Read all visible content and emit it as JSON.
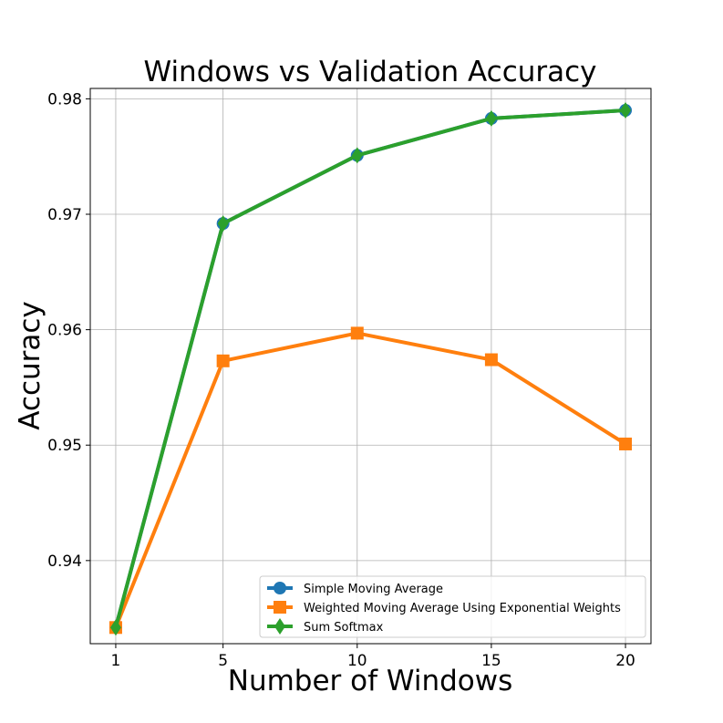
{
  "chart_data": {
    "type": "line",
    "title": "Windows vs Validation Accuracy",
    "xlabel": "Number of Windows",
    "ylabel": "Accuracy",
    "x": [
      1,
      5,
      10,
      15,
      20
    ],
    "x_ticks": [
      "1",
      "5",
      "10",
      "15",
      "20"
    ],
    "y_ticks": [
      "0.94",
      "0.95",
      "0.96",
      "0.97",
      "0.98"
    ],
    "y_tick_values": [
      0.94,
      0.95,
      0.96,
      0.97,
      0.98
    ],
    "ylim": [
      0.9328,
      0.9809
    ],
    "xlim": [
      0.05,
      20.95
    ],
    "grid": true,
    "legend_position": "bottom-right",
    "series": [
      {
        "name": "Simple Moving Average",
        "values": [
          0.9342,
          0.9692,
          0.9751,
          0.9783,
          0.979
        ],
        "color": "#1f77b4",
        "marker": "circle"
      },
      {
        "name": "Weighted Moving Average Using Exponential Weights",
        "values": [
          0.9342,
          0.9573,
          0.9597,
          0.9574,
          0.9501
        ],
        "color": "#ff7f0e",
        "marker": "square"
      },
      {
        "name": "Sum Softmax",
        "values": [
          0.9342,
          0.9692,
          0.9751,
          0.9783,
          0.979
        ],
        "color": "#2ca02c",
        "marker": "diamond"
      }
    ]
  }
}
